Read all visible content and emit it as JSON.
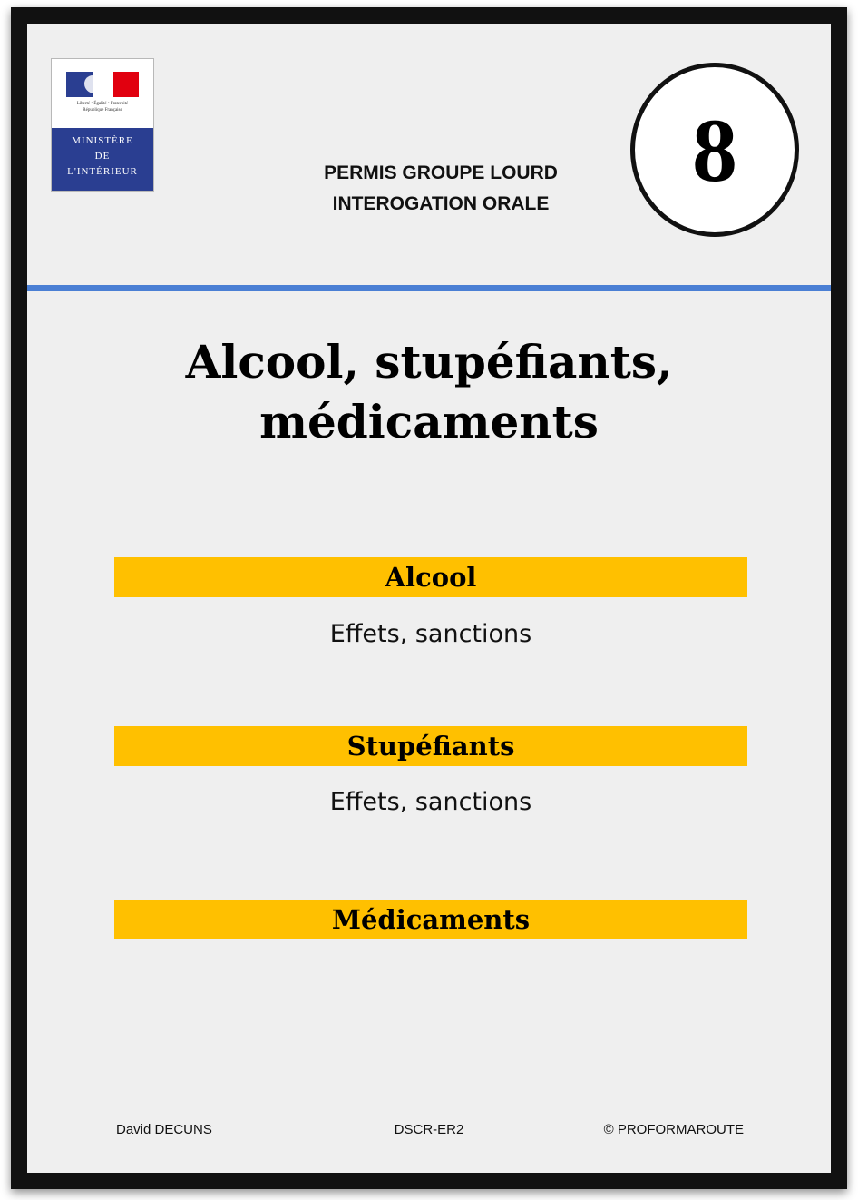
{
  "logo": {
    "motto": "Liberté • Égalité • Fraternité",
    "republic": "République Française",
    "ministry_lines": [
      "MINISTÈRE",
      "DE",
      "L'INTÉRIEUR"
    ],
    "colors": {
      "blue": "#2a3e91",
      "red": "#e1000f"
    }
  },
  "header": {
    "title_lines": [
      "PERMIS GROUPE LOURD",
      "INTEROGATION ORALE"
    ],
    "card_number": "8",
    "rule_color": "#4a7fd4"
  },
  "main": {
    "title_lines": [
      "Alcool, stupéfiants,",
      "médicaments"
    ],
    "sections": [
      {
        "heading": "Alcool",
        "subtitle": "Effets, sanctions"
      },
      {
        "heading": "Stupéfiants",
        "subtitle": "Effets, sanctions"
      },
      {
        "heading": "Médicaments",
        "subtitle": ""
      }
    ],
    "band_color": "#ffc000"
  },
  "footer": {
    "author": "David DECUNS",
    "code": "DSCR-ER2",
    "copyright": "© PROFORMAROUTE"
  }
}
